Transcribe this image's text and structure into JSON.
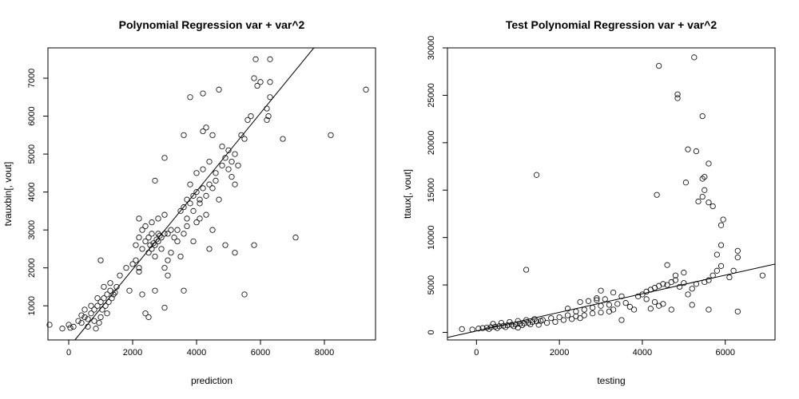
{
  "chart_data": [
    {
      "type": "scatter",
      "title": "Polynomial Regression var + var^2",
      "xlabel": "prediction",
      "ylabel": "tvauxbin[, vout]",
      "xlim": [
        -650,
        9600
      ],
      "ylim": [
        100,
        7800
      ],
      "xticks": [
        0,
        2000,
        4000,
        6000,
        8000
      ],
      "yticks": [
        1000,
        2000,
        3000,
        4000,
        5000,
        6000,
        7000
      ],
      "grid": false,
      "fit_line": {
        "slope": 1.03,
        "intercept": -100
      },
      "points": [
        [
          -600,
          500
        ],
        [
          -200,
          400
        ],
        [
          0,
          500
        ],
        [
          50,
          420
        ],
        [
          150,
          450
        ],
        [
          300,
          600
        ],
        [
          400,
          550
        ],
        [
          500,
          700
        ],
        [
          600,
          650
        ],
        [
          700,
          800
        ],
        [
          800,
          900
        ],
        [
          900,
          1000
        ],
        [
          1000,
          1100
        ],
        [
          1100,
          1200
        ],
        [
          1200,
          1300
        ],
        [
          1300,
          1400
        ],
        [
          1400,
          1300
        ],
        [
          1500,
          1500
        ],
        [
          600,
          450
        ],
        [
          800,
          600
        ],
        [
          1000,
          700
        ],
        [
          1200,
          800
        ],
        [
          900,
          1200
        ],
        [
          1100,
          1500
        ],
        [
          1300,
          1600
        ],
        [
          700,
          1000
        ],
        [
          500,
          900
        ],
        [
          400,
          750
        ],
        [
          850,
          400
        ],
        [
          950,
          550
        ],
        [
          1050,
          900
        ],
        [
          1150,
          1000
        ],
        [
          1250,
          1100
        ],
        [
          1350,
          1200
        ],
        [
          1450,
          1350
        ],
        [
          1000,
          2200
        ],
        [
          1600,
          1800
        ],
        [
          1800,
          2000
        ],
        [
          2000,
          2100
        ],
        [
          2100,
          2200
        ],
        [
          2200,
          2000
        ],
        [
          1900,
          1400
        ],
        [
          2100,
          2600
        ],
        [
          2200,
          2800
        ],
        [
          2300,
          2500
        ],
        [
          2400,
          2700
        ],
        [
          2500,
          2800
        ],
        [
          2600,
          2900
        ],
        [
          2700,
          2600
        ],
        [
          2800,
          2700
        ],
        [
          2900,
          2800
        ],
        [
          3000,
          2900
        ],
        [
          2500,
          2400
        ],
        [
          2600,
          2500
        ],
        [
          2700,
          2300
        ],
        [
          2800,
          2900
        ],
        [
          2400,
          3100
        ],
        [
          2600,
          3200
        ],
        [
          2800,
          3300
        ],
        [
          3000,
          3400
        ],
        [
          2200,
          3300
        ],
        [
          2300,
          3000
        ],
        [
          2750,
          2750
        ],
        [
          2650,
          2650
        ],
        [
          2550,
          2600
        ],
        [
          2850,
          2850
        ],
        [
          3100,
          2900
        ],
        [
          3200,
          3000
        ],
        [
          3300,
          2800
        ],
        [
          3400,
          3000
        ],
        [
          2400,
          800
        ],
        [
          2500,
          700
        ],
        [
          3000,
          950
        ],
        [
          2300,
          1300
        ],
        [
          2700,
          1400
        ],
        [
          3100,
          1800
        ],
        [
          2200,
          1900
        ],
        [
          3500,
          3500
        ],
        [
          3600,
          3600
        ],
        [
          3700,
          3800
        ],
        [
          3800,
          3700
        ],
        [
          3900,
          3900
        ],
        [
          4000,
          4000
        ],
        [
          4100,
          3800
        ],
        [
          4200,
          4100
        ],
        [
          4300,
          3900
        ],
        [
          4400,
          4200
        ],
        [
          4500,
          4100
        ],
        [
          3700,
          3300
        ],
        [
          3900,
          3500
        ],
        [
          4100,
          3300
        ],
        [
          4300,
          3400
        ],
        [
          3800,
          4200
        ],
        [
          4000,
          4500
        ],
        [
          4200,
          4600
        ],
        [
          4400,
          4800
        ],
        [
          4600,
          4500
        ],
        [
          4800,
          4700
        ],
        [
          5000,
          4600
        ],
        [
          5100,
          4400
        ],
        [
          4800,
          5200
        ],
        [
          4900,
          4900
        ],
        [
          5200,
          5000
        ],
        [
          5300,
          4700
        ],
        [
          4500,
          5500
        ],
        [
          4300,
          5700
        ],
        [
          4200,
          5600
        ],
        [
          3600,
          5500
        ],
        [
          3800,
          6500
        ],
        [
          4200,
          6600
        ],
        [
          4700,
          6700
        ],
        [
          5000,
          5100
        ],
        [
          5400,
          5500
        ],
        [
          5500,
          5400
        ],
        [
          5600,
          5900
        ],
        [
          5700,
          6000
        ],
        [
          5800,
          7000
        ],
        [
          5850,
          7500
        ],
        [
          5900,
          6800
        ],
        [
          6000,
          6900
        ],
        [
          6200,
          6200
        ],
        [
          6300,
          6500
        ],
        [
          6250,
          6000
        ],
        [
          6300,
          7500
        ],
        [
          6300,
          6900
        ],
        [
          6200,
          5900
        ],
        [
          6700,
          5400
        ],
        [
          5800,
          2600
        ],
        [
          5500,
          1300
        ],
        [
          5200,
          2400
        ],
        [
          4900,
          2600
        ],
        [
          4400,
          2500
        ],
        [
          3600,
          1400
        ],
        [
          3900,
          2700
        ],
        [
          3500,
          2300
        ],
        [
          8200,
          5500
        ],
        [
          9300,
          6700
        ],
        [
          7100,
          2800
        ],
        [
          4000,
          3200
        ],
        [
          3100,
          2200
        ],
        [
          3000,
          2000
        ],
        [
          2900,
          2500
        ],
        [
          3200,
          2400
        ],
        [
          3400,
          2700
        ],
        [
          3600,
          2900
        ],
        [
          3700,
          3100
        ],
        [
          4600,
          4300
        ],
        [
          4700,
          3800
        ],
        [
          5100,
          4800
        ],
        [
          5200,
          4200
        ],
        [
          4500,
          3000
        ],
        [
          4100,
          3700
        ],
        [
          2700,
          4300
        ],
        [
          3000,
          4900
        ]
      ]
    },
    {
      "type": "scatter",
      "title": "Test Polynomial Regression var + var^2",
      "xlabel": "testing",
      "ylabel": "ttaux[, vout]",
      "xlim": [
        -700,
        7200
      ],
      "ylim": [
        -800,
        30000
      ],
      "xticks": [
        0,
        2000,
        4000,
        6000
      ],
      "yticks": [
        0,
        5000,
        10000,
        15000,
        20000,
        25000,
        30000
      ],
      "grid": false,
      "fit_line": {
        "slope": 0.98,
        "intercept": 150
      },
      "points": [
        [
          -350,
          350
        ],
        [
          -100,
          300
        ],
        [
          50,
          400
        ],
        [
          150,
          450
        ],
        [
          250,
          500
        ],
        [
          350,
          550
        ],
        [
          450,
          600
        ],
        [
          550,
          650
        ],
        [
          650,
          700
        ],
        [
          750,
          750
        ],
        [
          850,
          800
        ],
        [
          950,
          850
        ],
        [
          1050,
          900
        ],
        [
          1150,
          950
        ],
        [
          1250,
          1000
        ],
        [
          1350,
          1100
        ],
        [
          1450,
          1150
        ],
        [
          1550,
          1200
        ],
        [
          300,
          350
        ],
        [
          500,
          450
        ],
        [
          700,
          550
        ],
        [
          900,
          650
        ],
        [
          1100,
          750
        ],
        [
          1300,
          850
        ],
        [
          400,
          900
        ],
        [
          600,
          1000
        ],
        [
          800,
          1100
        ],
        [
          1000,
          1200
        ],
        [
          1200,
          1300
        ],
        [
          1400,
          1400
        ],
        [
          1600,
          1300
        ],
        [
          1800,
          1500
        ],
        [
          2000,
          1600
        ],
        [
          2200,
          1800
        ],
        [
          2400,
          2200
        ],
        [
          2600,
          2400
        ],
        [
          2800,
          2600
        ],
        [
          3000,
          2800
        ],
        [
          3200,
          2900
        ],
        [
          3400,
          3000
        ],
        [
          3600,
          3100
        ],
        [
          2500,
          3200
        ],
        [
          2700,
          3300
        ],
        [
          2900,
          3400
        ],
        [
          3100,
          3500
        ],
        [
          3300,
          2400
        ],
        [
          2600,
          1800
        ],
        [
          2800,
          2000
        ],
        [
          3000,
          2100
        ],
        [
          3200,
          2200
        ],
        [
          2400,
          1700
        ],
        [
          2200,
          2500
        ],
        [
          3700,
          2700
        ],
        [
          3800,
          2400
        ],
        [
          3500,
          1300
        ],
        [
          3900,
          3800
        ],
        [
          4000,
          4000
        ],
        [
          4100,
          4300
        ],
        [
          4200,
          4500
        ],
        [
          4300,
          4700
        ],
        [
          4400,
          4900
        ],
        [
          4500,
          5100
        ],
        [
          4600,
          5000
        ],
        [
          4700,
          5300
        ],
        [
          4800,
          5500
        ],
        [
          4900,
          4800
        ],
        [
          5000,
          5200
        ],
        [
          4100,
          3500
        ],
        [
          4300,
          3200
        ],
        [
          4500,
          3000
        ],
        [
          4200,
          2500
        ],
        [
          4400,
          2800
        ],
        [
          4600,
          7100
        ],
        [
          4800,
          6000
        ],
        [
          5000,
          6300
        ],
        [
          5200,
          4600
        ],
        [
          5300,
          5100
        ],
        [
          5500,
          5300
        ],
        [
          5600,
          5500
        ],
        [
          5700,
          6000
        ],
        [
          5800,
          6500
        ],
        [
          5900,
          7000
        ],
        [
          5800,
          8200
        ],
        [
          5900,
          9200
        ],
        [
          5950,
          11900
        ],
        [
          5900,
          11300
        ],
        [
          5600,
          17800
        ],
        [
          5500,
          16400
        ],
        [
          5450,
          16200
        ],
        [
          5500,
          15000
        ],
        [
          5450,
          14300
        ],
        [
          5350,
          13800
        ],
        [
          5300,
          19100
        ],
        [
          5100,
          19300
        ],
        [
          5450,
          22800
        ],
        [
          5050,
          15800
        ],
        [
          4850,
          25100
        ],
        [
          4850,
          24700
        ],
        [
          4400,
          28100
        ],
        [
          5250,
          29000
        ],
        [
          4350,
          14500
        ],
        [
          1450,
          16600
        ],
        [
          1200,
          6600
        ],
        [
          5700,
          13300
        ],
        [
          5600,
          13700
        ],
        [
          6100,
          5800
        ],
        [
          6200,
          6500
        ],
        [
          6300,
          8600
        ],
        [
          6300,
          7900
        ],
        [
          6300,
          2200
        ],
        [
          6900,
          6000
        ],
        [
          5600,
          2400
        ],
        [
          5200,
          2900
        ],
        [
          4700,
          2400
        ],
        [
          3000,
          4400
        ],
        [
          3300,
          4200
        ],
        [
          3500,
          3800
        ],
        [
          2900,
          3600
        ],
        [
          1000,
          500
        ],
        [
          1500,
          800
        ],
        [
          1700,
          1000
        ],
        [
          1900,
          1100
        ],
        [
          2100,
          1300
        ],
        [
          2300,
          1400
        ],
        [
          2500,
          1500
        ],
        [
          5100,
          4000
        ]
      ]
    }
  ]
}
